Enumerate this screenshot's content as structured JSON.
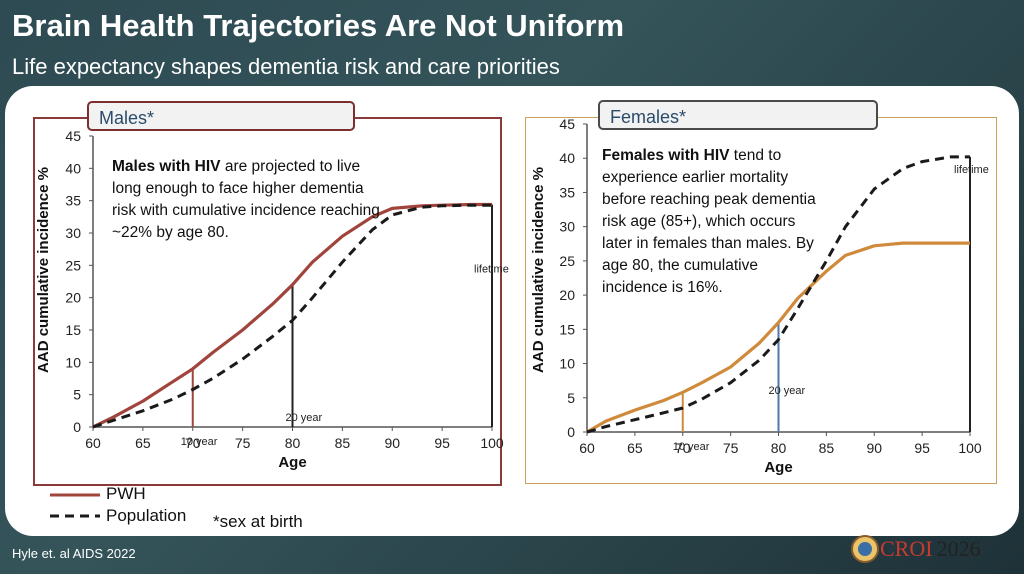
{
  "header": {
    "title": "Brain Health Trajectories Are Not Uniform",
    "subtitle": "Life expectancy shapes dementia risk and care priorities"
  },
  "panels": {
    "males": {
      "tab_label": "Males*",
      "note_bold": "Males with HIV",
      "note_rest": " are projected to live long enough to face higher dementia risk with cumulative incidence reaching ~22% by age 80.",
      "annotations": [
        "10 year",
        "20 year",
        "lifetime"
      ]
    },
    "females": {
      "tab_label": "Females*",
      "note_bold": "Females with HIV",
      "note_rest": " tend to experience earlier mortality before reaching peak dementia risk age (85+), which occurs later in females than males. By age 80, the cumulative incidence is 16%.",
      "annotations": [
        "10 year",
        "20 year",
        "lifetime"
      ]
    }
  },
  "legend": {
    "pwh": "PWH",
    "population": "Population",
    "footnote": "*sex at birth"
  },
  "footer": {
    "citation": "Hyle et. al AIDS 2022",
    "logo_text": "CROI",
    "logo_year": "2026"
  },
  "colors": {
    "males_pwh": "#a0443c",
    "females_pwh": "#d08a3c",
    "population": "#1a1a1a",
    "males_border": "#8b3a3a",
    "females_border": "#c9a35a",
    "females_marker": "#4d7aa8"
  },
  "chart_data": [
    {
      "type": "line",
      "panel": "Males*",
      "xlabel": "Age",
      "ylabel": "AAD cumulative incidence %",
      "xlim": [
        60,
        100
      ],
      "ylim": [
        0,
        45
      ],
      "xticks": [
        60,
        65,
        70,
        75,
        80,
        85,
        90,
        95,
        100
      ],
      "yticks": [
        0,
        5,
        10,
        15,
        20,
        25,
        30,
        35,
        40,
        45
      ],
      "series": [
        {
          "name": "PWH",
          "style": "solid",
          "x": [
            60,
            62,
            65,
            68,
            70,
            72,
            75,
            78,
            80,
            82,
            85,
            88,
            90,
            93,
            95,
            98,
            100
          ],
          "y": [
            0,
            1.5,
            4,
            7,
            9,
            11.5,
            15,
            19,
            22,
            25.5,
            29.5,
            32.5,
            33.8,
            34.2,
            34.3,
            34.4,
            34.4
          ]
        },
        {
          "name": "Population",
          "style": "dashed",
          "x": [
            60,
            62,
            65,
            68,
            70,
            72,
            75,
            78,
            80,
            82,
            85,
            88,
            90,
            93,
            95,
            98,
            100
          ],
          "y": [
            0,
            1,
            2.5,
            4.3,
            5.8,
            7.5,
            10.5,
            14,
            16.5,
            20,
            25.5,
            30.5,
            32.8,
            34,
            34.2,
            34.3,
            34.3
          ]
        }
      ],
      "markers": [
        {
          "label": "10 year",
          "x": 70,
          "y": 9
        },
        {
          "label": "20 year",
          "x": 80,
          "y": 22
        },
        {
          "label": "lifetime",
          "x": 100,
          "y": 34.4
        }
      ]
    },
    {
      "type": "line",
      "panel": "Females*",
      "xlabel": "Age",
      "ylabel": "AAD cumulative incidence %",
      "xlim": [
        60,
        100
      ],
      "ylim": [
        0,
        45
      ],
      "xticks": [
        60,
        65,
        70,
        75,
        80,
        85,
        90,
        95,
        100
      ],
      "yticks": [
        0,
        5,
        10,
        15,
        20,
        25,
        30,
        35,
        40,
        45
      ],
      "series": [
        {
          "name": "PWH",
          "style": "solid",
          "x": [
            60,
            62,
            65,
            68,
            70,
            72,
            75,
            78,
            80,
            82,
            85,
            87,
            90,
            93,
            95,
            98,
            100
          ],
          "y": [
            0,
            1.6,
            3.2,
            4.6,
            5.8,
            7.2,
            9.5,
            13,
            16,
            19.5,
            23.5,
            25.8,
            27.2,
            27.6,
            27.6,
            27.6,
            27.6
          ]
        },
        {
          "name": "Population",
          "style": "dashed",
          "x": [
            60,
            62,
            65,
            68,
            70,
            72,
            75,
            78,
            80,
            82,
            85,
            87,
            90,
            93,
            95,
            98,
            100
          ],
          "y": [
            0,
            0.8,
            1.8,
            2.8,
            3.5,
            4.8,
            7.2,
            10.5,
            13.5,
            18,
            25,
            30,
            35.5,
            38.5,
            39.5,
            40.2,
            40.2
          ]
        }
      ],
      "markers": [
        {
          "label": "10 year",
          "x": 70,
          "y": 5.8
        },
        {
          "label": "20 year",
          "x": 80,
          "y": 16
        },
        {
          "label": "lifetime",
          "x": 100,
          "y": 40.2
        }
      ]
    }
  ]
}
